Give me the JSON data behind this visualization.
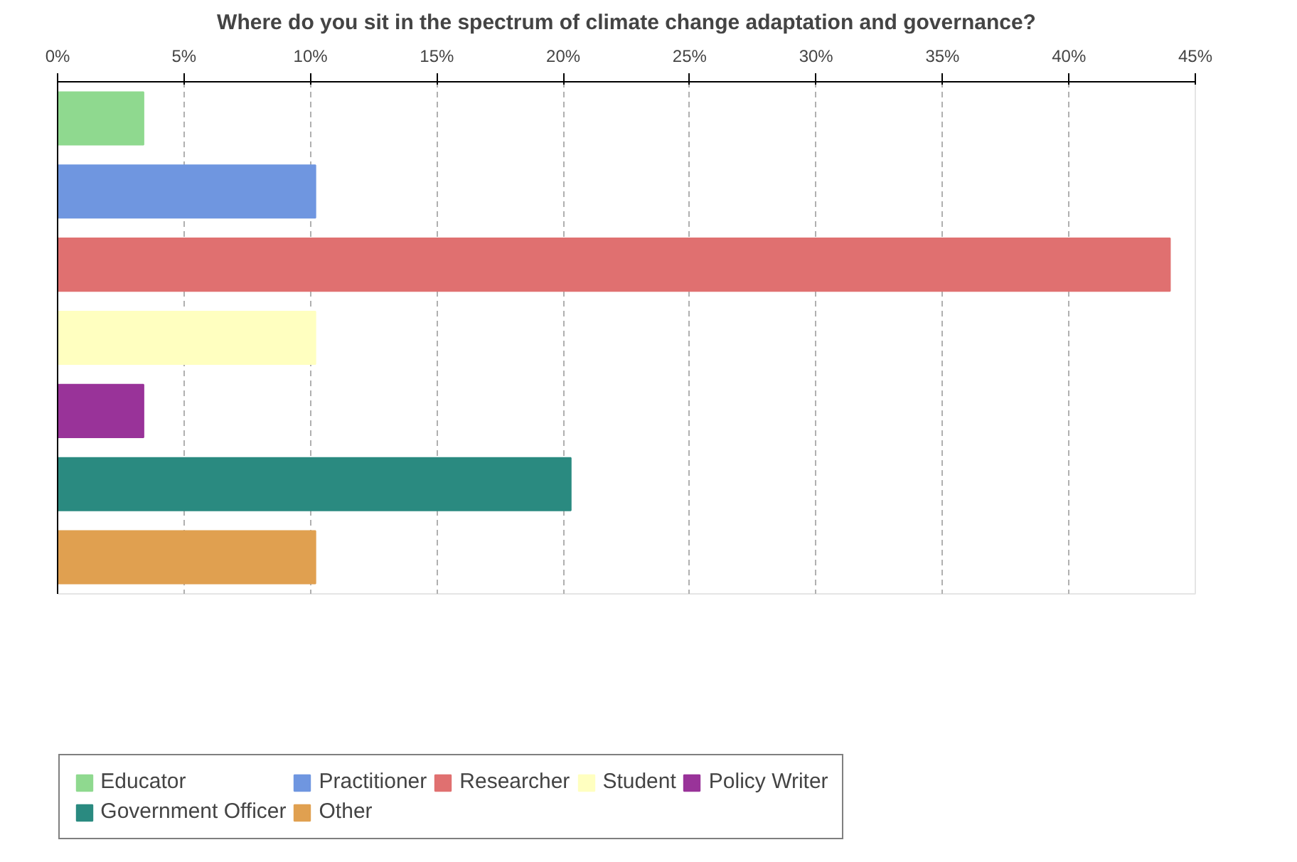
{
  "chart_data": {
    "type": "bar",
    "orientation": "horizontal",
    "title": "Where do you sit in the spectrum of climate change adaptation and governance?",
    "categories": [
      null,
      null,
      null,
      null,
      null,
      null,
      null
    ],
    "series": [
      {
        "name": "Educator",
        "color": "#8fd98f",
        "values": [
          3.4,
          null,
          null,
          null,
          null,
          null,
          null
        ]
      },
      {
        "name": "Practitioner",
        "color": "#6f96e0",
        "values": [
          null,
          10.2,
          null,
          null,
          null,
          null,
          null
        ]
      },
      {
        "name": "Researcher",
        "color": "#e07070",
        "values": [
          null,
          null,
          44,
          null,
          null,
          null,
          null
        ]
      },
      {
        "name": "Student",
        "color": "#ffffc0",
        "values": [
          null,
          null,
          null,
          10.2,
          null,
          null,
          null
        ]
      },
      {
        "name": "Policy Writer",
        "color": "#993399",
        "values": [
          null,
          null,
          null,
          null,
          3.4,
          null,
          null
        ]
      },
      {
        "name": "Government Officer",
        "color": "#2a8a80",
        "values": [
          null,
          null,
          null,
          null,
          null,
          20.3,
          null
        ]
      },
      {
        "name": "Other",
        "color": "#e0a050",
        "values": [
          null,
          null,
          null,
          null,
          null,
          null,
          10.2
        ]
      }
    ],
    "xlim": [
      0,
      45
    ],
    "xticks": [
      {
        "value": 0,
        "label": "0%"
      },
      {
        "value": 5,
        "label": "5%"
      },
      {
        "value": 10,
        "label": "10%"
      },
      {
        "value": 15,
        "label": "15%"
      },
      {
        "value": 20,
        "label": "20%"
      },
      {
        "value": 25,
        "label": "25%"
      },
      {
        "value": 30,
        "label": "30%"
      },
      {
        "value": 35,
        "label": "35%"
      },
      {
        "value": 40,
        "label": "40%"
      },
      {
        "value": 45,
        "label": "45%"
      }
    ],
    "grid": "x",
    "legend": "bottom",
    "tick_labels": "x"
  }
}
